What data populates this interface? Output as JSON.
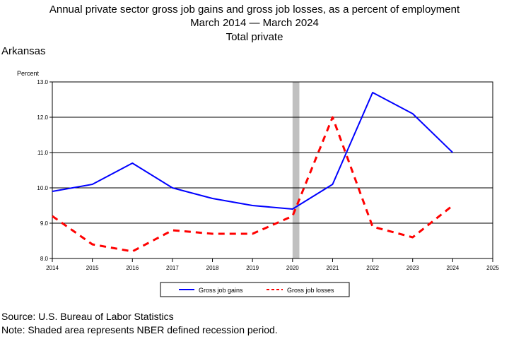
{
  "title": {
    "line1": "Annual private sector gross job gains and gross job losses, as a percent of employment",
    "line2": "March 2014 — March 2024",
    "line3": "Total private"
  },
  "region": "Arkansas",
  "footer": {
    "source": "Source: U.S. Bureau of Labor Statistics",
    "note": "Note: Shaded area represents NBER defined recession period."
  },
  "chart_data": {
    "type": "line",
    "ylabel": "Percent",
    "xlim": [
      2014,
      2025
    ],
    "ylim": [
      8.0,
      13.0
    ],
    "x_ticks": [
      "2014",
      "2015",
      "2016",
      "2017",
      "2018",
      "2019",
      "2020",
      "2021",
      "2022",
      "2023",
      "2024",
      "2025"
    ],
    "y_ticks": [
      "8.0",
      "9.0",
      "10.0",
      "11.0",
      "12.0",
      "13.0"
    ],
    "grid": true,
    "recession": [
      2020.0,
      2020.17
    ],
    "legend_position": "bottom",
    "colors": {
      "gains": "#0000ff",
      "losses": "#ff0000",
      "recession": "#c0c0c0"
    },
    "x": [
      2014,
      2015,
      2016,
      2017,
      2018,
      2019,
      2020,
      2021,
      2022,
      2023,
      2024
    ],
    "series": [
      {
        "name": "Gross job gains",
        "style": "solid",
        "values": [
          9.9,
          10.1,
          10.7,
          10.0,
          9.7,
          9.5,
          9.4,
          10.1,
          12.7,
          12.1,
          11.0
        ]
      },
      {
        "name": "Gross job losses",
        "style": "dashed",
        "values": [
          9.2,
          8.4,
          8.2,
          8.8,
          8.7,
          8.7,
          9.2,
          12.0,
          8.9,
          8.6,
          9.5
        ]
      }
    ]
  }
}
